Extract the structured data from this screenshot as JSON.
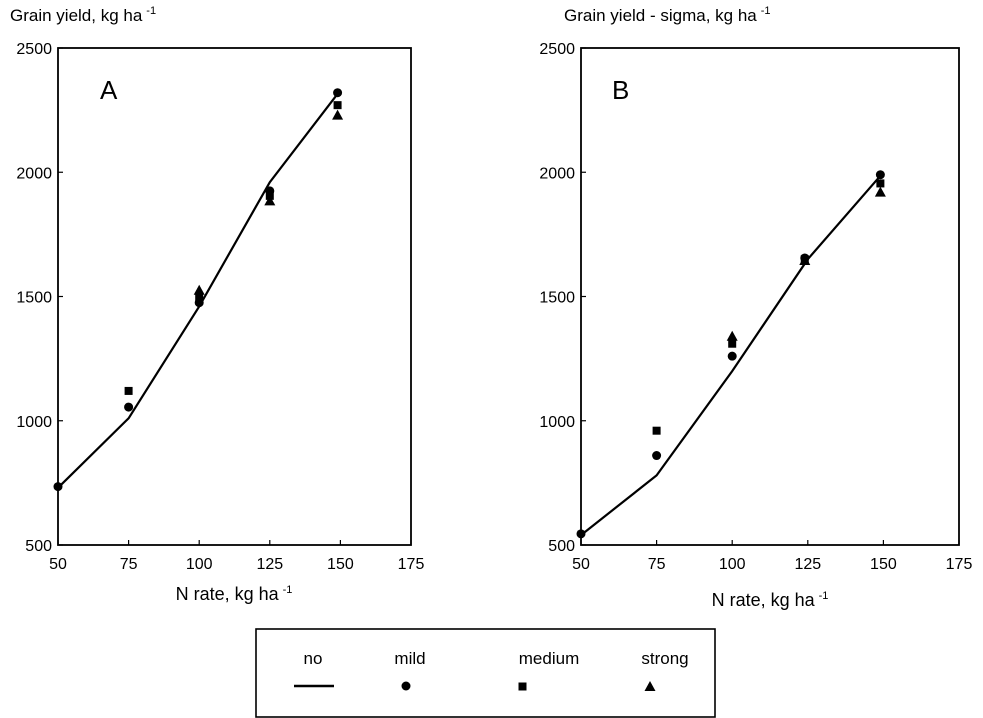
{
  "chart_data": [
    {
      "type": "line",
      "panel_label": "A",
      "ylabel": "Grain yield, kg ha",
      "ylabel_sup": "-1",
      "xlabel": "N rate, kg ha",
      "xlabel_sup": "-1",
      "xlim": [
        50,
        175
      ],
      "ylim": [
        500,
        2500
      ],
      "x_ticks": [
        "50",
        "75",
        "100",
        "125",
        "150",
        "175"
      ],
      "y_ticks": [
        "500",
        "1000",
        "1500",
        "2000",
        "2500"
      ],
      "series": [
        {
          "name": "no",
          "marker": "line",
          "x": [
            50,
            75,
            100,
            125,
            150
          ],
          "y": [
            730,
            1010,
            1460,
            1960,
            2330
          ]
        },
        {
          "name": "mild",
          "marker": "circle",
          "x": [
            50,
            75,
            100,
            125,
            149
          ],
          "y": [
            735,
            1055,
            1475,
            1925,
            2320
          ]
        },
        {
          "name": "medium",
          "marker": "square",
          "x": [
            75,
            100,
            125,
            149
          ],
          "y": [
            1120,
            1495,
            1905,
            2270
          ]
        },
        {
          "name": "strong",
          "marker": "triangle",
          "x": [
            100,
            125,
            149
          ],
          "y": [
            1525,
            1885,
            2230
          ]
        }
      ]
    },
    {
      "type": "line",
      "panel_label": "B",
      "ylabel": "Grain yield - sigma, kg ha",
      "ylabel_sup": "-1",
      "xlabel": "N rate, kg ha",
      "xlabel_sup": "-1",
      "xlim": [
        50,
        175
      ],
      "ylim": [
        500,
        2500
      ],
      "x_ticks": [
        "50",
        "75",
        "100",
        "125",
        "150",
        "175"
      ],
      "y_ticks": [
        "500",
        "1000",
        "1500",
        "2000",
        "2500"
      ],
      "series": [
        {
          "name": "no",
          "marker": "line",
          "x": [
            50,
            75,
            100,
            125,
            150
          ],
          "y": [
            540,
            780,
            1200,
            1650,
            2000
          ]
        },
        {
          "name": "mild",
          "marker": "circle",
          "x": [
            50,
            75,
            100,
            124,
            149
          ],
          "y": [
            545,
            860,
            1260,
            1655,
            1990
          ]
        },
        {
          "name": "medium",
          "marker": "square",
          "x": [
            75,
            100,
            124,
            149
          ],
          "y": [
            960,
            1310,
            1650,
            1955
          ]
        },
        {
          "name": "strong",
          "marker": "triangle",
          "x": [
            100,
            124,
            149
          ],
          "y": [
            1340,
            1645,
            1920
          ]
        }
      ]
    }
  ],
  "legend": {
    "placement": "bottom-center",
    "items": [
      {
        "label": "no",
        "marker": "line"
      },
      {
        "label": "mild",
        "marker": "circle"
      },
      {
        "label": "medium",
        "marker": "square"
      },
      {
        "label": "strong",
        "marker": "triangle"
      }
    ]
  },
  "colors": {
    "ink": "#000000",
    "background": "#ffffff"
  }
}
